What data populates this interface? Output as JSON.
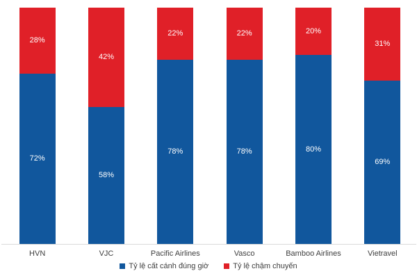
{
  "chart_data": {
    "type": "bar",
    "stacked": true,
    "orientation": "vertical",
    "title": "",
    "xlabel": "",
    "ylabel": "",
    "ylim": [
      0,
      100
    ],
    "grid": false,
    "legend_position": "bottom",
    "value_suffix": "%",
    "categories": [
      "HVN",
      "VJC",
      "Pacific Airlines",
      "Vasco",
      "Bamboo Airlines",
      "Vietravel"
    ],
    "series": [
      {
        "name": "Tỷ lệ cất cánh đúng giờ",
        "color": "#11579D",
        "values": [
          72,
          58,
          78,
          78,
          80,
          69
        ]
      },
      {
        "name": "Tỷ lệ chậm chuyến",
        "color": "#E02028",
        "values": [
          28,
          42,
          22,
          22,
          20,
          31
        ]
      }
    ],
    "colors": {
      "on_time_blue": "#11579D",
      "delayed_red": "#E02028",
      "axis_line": "#D9D9D9",
      "segment_label_text": "#FFFFFF",
      "category_label_text": "#3D3D3D",
      "background": "#FFFFFF"
    }
  }
}
